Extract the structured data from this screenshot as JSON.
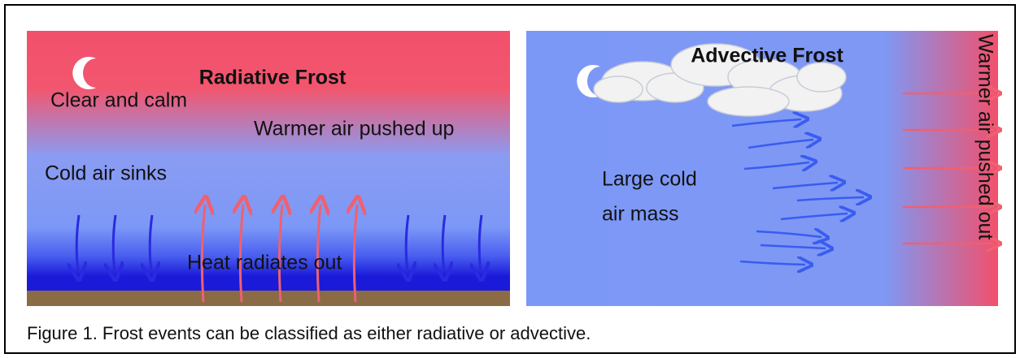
{
  "panels": [
    {
      "title": "Radiative Frost",
      "labels": [
        "Clear and calm",
        "Warmer air pushed up",
        "Cold air sinks",
        "Heat radiates out"
      ]
    },
    {
      "title": "Advective Frost",
      "labels": [
        "Large cold",
        "air mass",
        "Warmer air pushed out"
      ]
    }
  ],
  "caption": "Figure 1. Frost events can be classified as either radiative or advective."
}
